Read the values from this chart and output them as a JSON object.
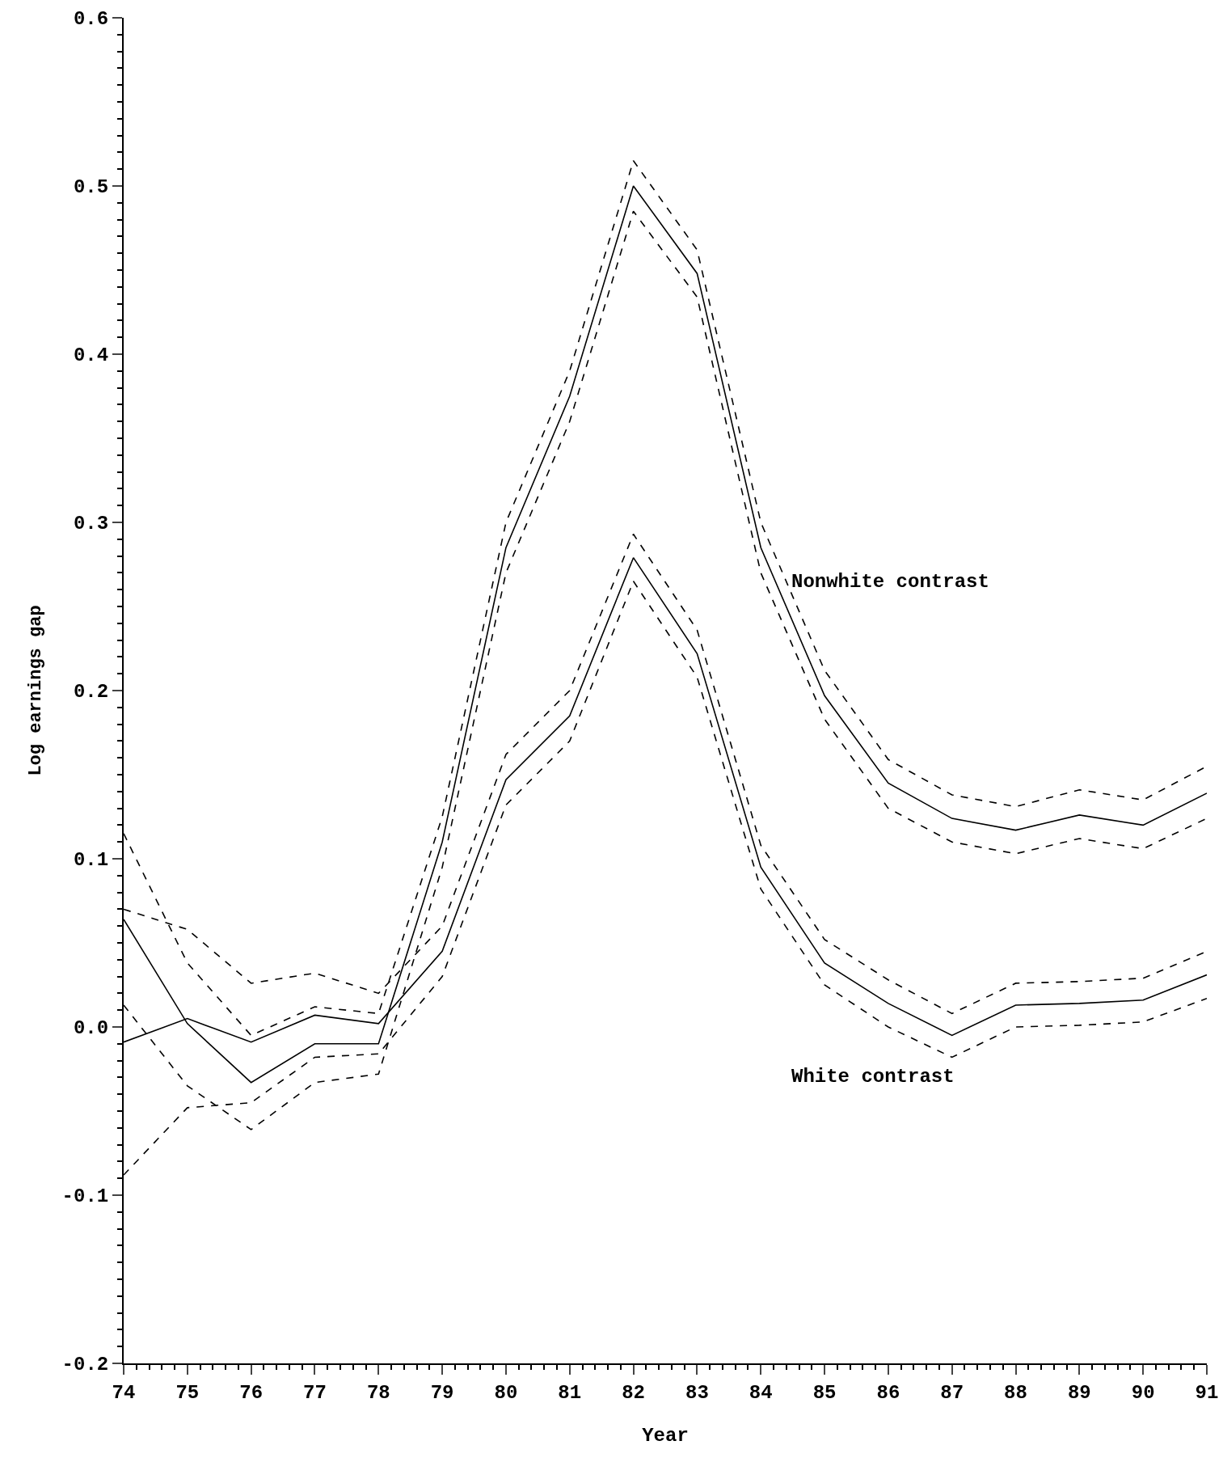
{
  "chart_data": {
    "type": "line",
    "xlabel": "Year",
    "ylabel": "Log earnings gap",
    "x": [
      74,
      75,
      76,
      77,
      78,
      79,
      80,
      81,
      82,
      83,
      84,
      85,
      86,
      87,
      88,
      89,
      90,
      91
    ],
    "series": [
      {
        "name": "Nonwhite contrast",
        "color": "#000000",
        "values": [
          0.064,
          0.002,
          -0.033,
          -0.01,
          -0.01,
          0.11,
          0.285,
          0.375,
          0.5,
          0.448,
          0.285,
          0.197,
          0.145,
          0.124,
          0.117,
          0.126,
          0.12,
          0.139
        ]
      },
      {
        "color": "#000000",
        "line_style": "dashed",
        "values": [
          0.013,
          -0.035,
          -0.061,
          -0.033,
          -0.028,
          0.095,
          0.27,
          0.36,
          0.485,
          0.434,
          0.27,
          0.183,
          0.13,
          0.11,
          0.103,
          0.112,
          0.106,
          0.124
        ]
      },
      {
        "color": "#000000",
        "line_style": "dashed",
        "values": [
          0.115,
          0.038,
          -0.005,
          0.012,
          0.008,
          0.125,
          0.3,
          0.39,
          0.515,
          0.462,
          0.3,
          0.212,
          0.159,
          0.138,
          0.131,
          0.141,
          0.135,
          0.155
        ]
      },
      {
        "name": "White contrast",
        "color": "#000000",
        "values": [
          -0.009,
          0.005,
          -0.009,
          0.007,
          0.002,
          0.045,
          0.147,
          0.185,
          0.279,
          0.222,
          0.095,
          0.038,
          0.014,
          -0.005,
          0.013,
          0.014,
          0.016,
          0.031
        ]
      },
      {
        "color": "#000000",
        "line_style": "dashed",
        "values": [
          -0.088,
          -0.048,
          -0.045,
          -0.018,
          -0.016,
          0.03,
          0.132,
          0.17,
          0.265,
          0.208,
          0.082,
          0.025,
          0.0,
          -0.018,
          0.0,
          0.001,
          0.003,
          0.017
        ]
      },
      {
        "color": "#000000",
        "line_style": "dashed",
        "values": [
          0.07,
          0.058,
          0.026,
          0.032,
          0.02,
          0.06,
          0.162,
          0.2,
          0.293,
          0.236,
          0.108,
          0.052,
          0.028,
          0.008,
          0.026,
          0.027,
          0.029,
          0.045
        ]
      }
    ],
    "xlim": [
      74,
      91
    ],
    "xticks": [
      74,
      75,
      76,
      77,
      78,
      79,
      80,
      81,
      82,
      83,
      84,
      85,
      86,
      87,
      88,
      89,
      90,
      91
    ],
    "ylim": [
      -0.2,
      0.6
    ],
    "yticks": [
      {
        "value": -0.2,
        "label": "-0.2"
      },
      {
        "value": -0.1,
        "label": "-0.1"
      },
      {
        "value": 0,
        "label": "0.0"
      },
      {
        "value": 0.1,
        "label": "0.1"
      },
      {
        "value": 0.2,
        "label": "0.2"
      },
      {
        "value": 0.3,
        "label": "0.3"
      },
      {
        "value": 0.4,
        "label": "0.4"
      },
      {
        "value": 0.5,
        "label": "0.5"
      },
      {
        "value": 0.6,
        "label": "0.6"
      }
    ],
    "grid": false,
    "legend": false,
    "marker": "none",
    "line_style": "solid"
  }
}
